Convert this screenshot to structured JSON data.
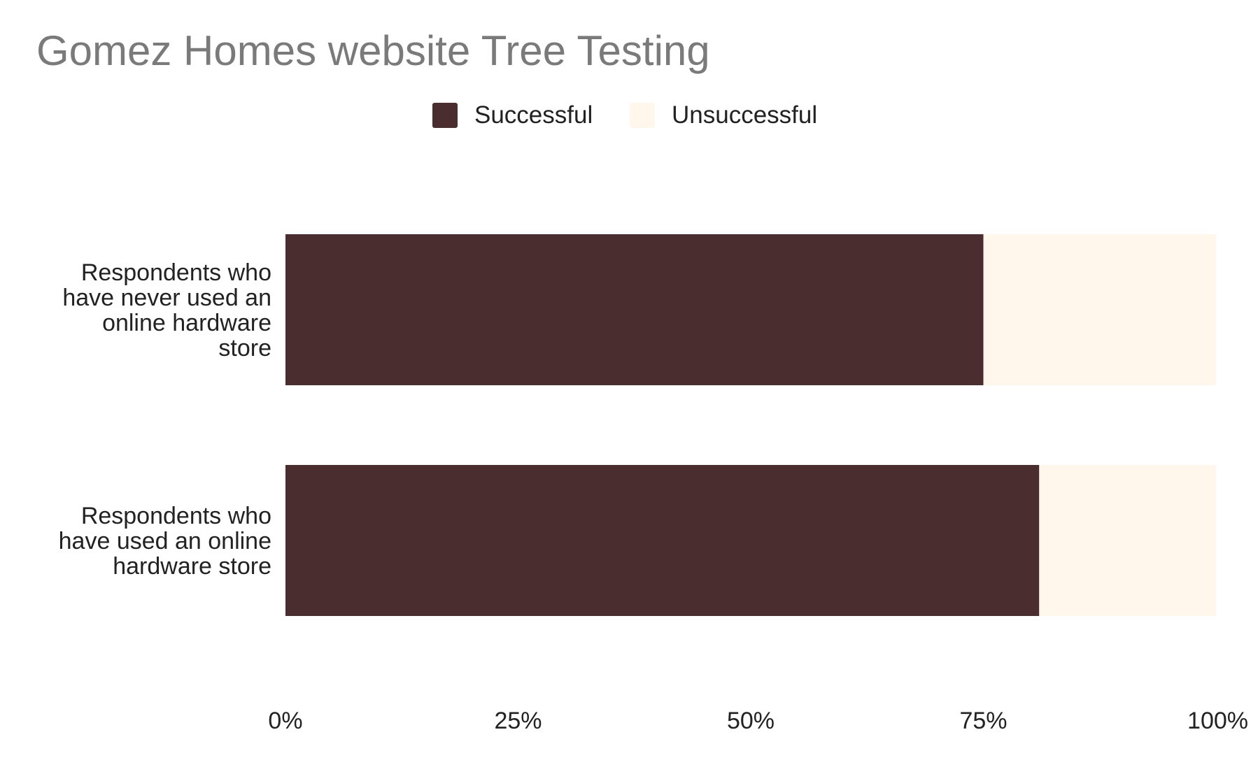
{
  "chart_data": {
    "type": "bar",
    "orientation": "horizontal",
    "stacked": true,
    "title": "Gomez Homes website Tree Testing",
    "categories": [
      [
        "Respondents who",
        "have never used an",
        "online hardware",
        "store"
      ],
      [
        "Respondents who",
        "have used an online",
        "hardware store"
      ]
    ],
    "series": [
      {
        "name": "Successful",
        "color": "#4a2e2f",
        "values": [
          0.75,
          0.81
        ]
      },
      {
        "name": "Unsuccessful",
        "color": "#fff6ec",
        "values": [
          0.25,
          0.19
        ]
      }
    ],
    "xlim": [
      0,
      1
    ],
    "xticks": [
      0,
      0.25,
      0.5,
      0.75,
      1
    ],
    "xtick_labels": [
      "0%",
      "25%",
      "50%",
      "75%",
      "100%"
    ],
    "legend_position": "top",
    "grid": false
  }
}
